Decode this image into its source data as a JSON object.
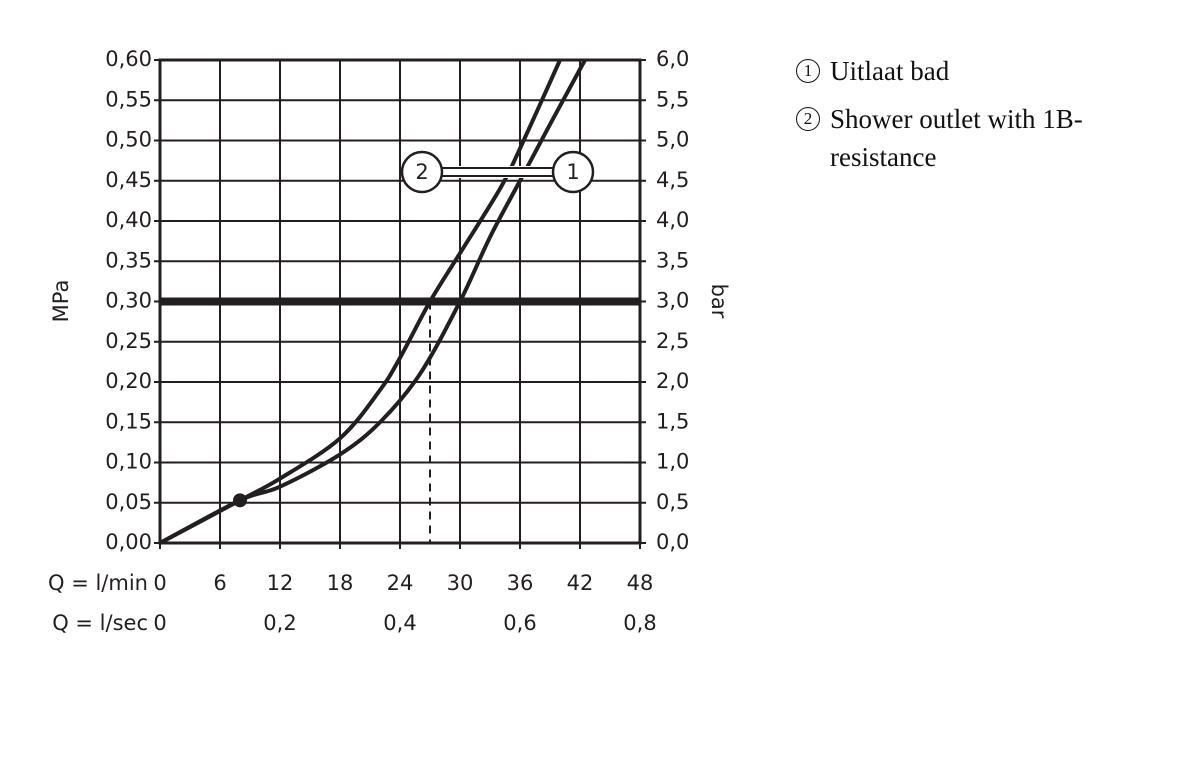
{
  "chart_data": {
    "type": "line",
    "y_label": "MPa",
    "y2_label": "bar",
    "x_label": "Q = l/min",
    "x2_label": "Q = l/sec",
    "xlim": [
      0,
      48
    ],
    "xticks": [
      0,
      6,
      12,
      18,
      24,
      30,
      36,
      42,
      48
    ],
    "x2lim": [
      0,
      0.8
    ],
    "x2ticks": [
      0,
      {
        "value": 0.2,
        "label": "0,2"
      },
      {
        "value": 0.4,
        "label": "0,4"
      },
      {
        "value": 0.6,
        "label": "0,6"
      },
      {
        "value": 0.8,
        "label": "0,8"
      }
    ],
    "ylim": [
      0,
      0.6
    ],
    "yticks": [
      {
        "value": 0,
        "label": "0,00"
      },
      {
        "value": 0.05,
        "label": "0,05"
      },
      {
        "value": 0.1,
        "label": "0,10"
      },
      {
        "value": 0.15,
        "label": "0,15"
      },
      {
        "value": 0.2,
        "label": "0,20"
      },
      {
        "value": 0.25,
        "label": "0,25"
      },
      {
        "value": 0.3,
        "label": "0,30"
      },
      {
        "value": 0.35,
        "label": "0,35"
      },
      {
        "value": 0.4,
        "label": "0,40"
      },
      {
        "value": 0.45,
        "label": "0,45"
      },
      {
        "value": 0.5,
        "label": "0,50"
      },
      {
        "value": 0.55,
        "label": "0,55"
      },
      {
        "value": 0.6,
        "label": "0,60"
      }
    ],
    "y2lim": [
      0,
      6
    ],
    "y2ticks": [
      {
        "value": 0,
        "label": "0,0"
      },
      {
        "value": 0.5,
        "label": "0,5"
      },
      {
        "value": 1,
        "label": "1,0"
      },
      {
        "value": 1.5,
        "label": "1,5"
      },
      {
        "value": 2,
        "label": "2,0"
      },
      {
        "value": 2.5,
        "label": "2,5"
      },
      {
        "value": 3,
        "label": "3,0"
      },
      {
        "value": 3.5,
        "label": "3,5"
      },
      {
        "value": 4,
        "label": "4,0"
      },
      {
        "value": 4.5,
        "label": "4,5"
      },
      {
        "value": 5,
        "label": "5,0"
      },
      {
        "value": 5.5,
        "label": "5,5"
      },
      {
        "value": 6,
        "label": "6,0"
      }
    ],
    "grid": true,
    "reference_line": 0.3,
    "drop_lines_x": [
      27,
      30
    ],
    "marker": {
      "x": 8,
      "y": 0.053
    },
    "series": [
      {
        "name": "Uitlaat bad",
        "label": "1",
        "color": "#231f20",
        "x": [
          0,
          8,
          12,
          18,
          22,
          26,
          30,
          33,
          36,
          39,
          42.5
        ],
        "values": [
          0,
          0.053,
          0.07,
          0.11,
          0.15,
          0.21,
          0.3,
          0.38,
          0.45,
          0.52,
          0.6
        ]
      },
      {
        "name": "Shower outlet with 1B-resistance",
        "label": "2",
        "color": "#231f20",
        "x": [
          0,
          8,
          12,
          18,
          22,
          24,
          27,
          30,
          34,
          36,
          40
        ],
        "values": [
          0,
          0.053,
          0.08,
          0.13,
          0.19,
          0.23,
          0.3,
          0.36,
          0.44,
          0.49,
          0.6
        ]
      }
    ]
  }
}
